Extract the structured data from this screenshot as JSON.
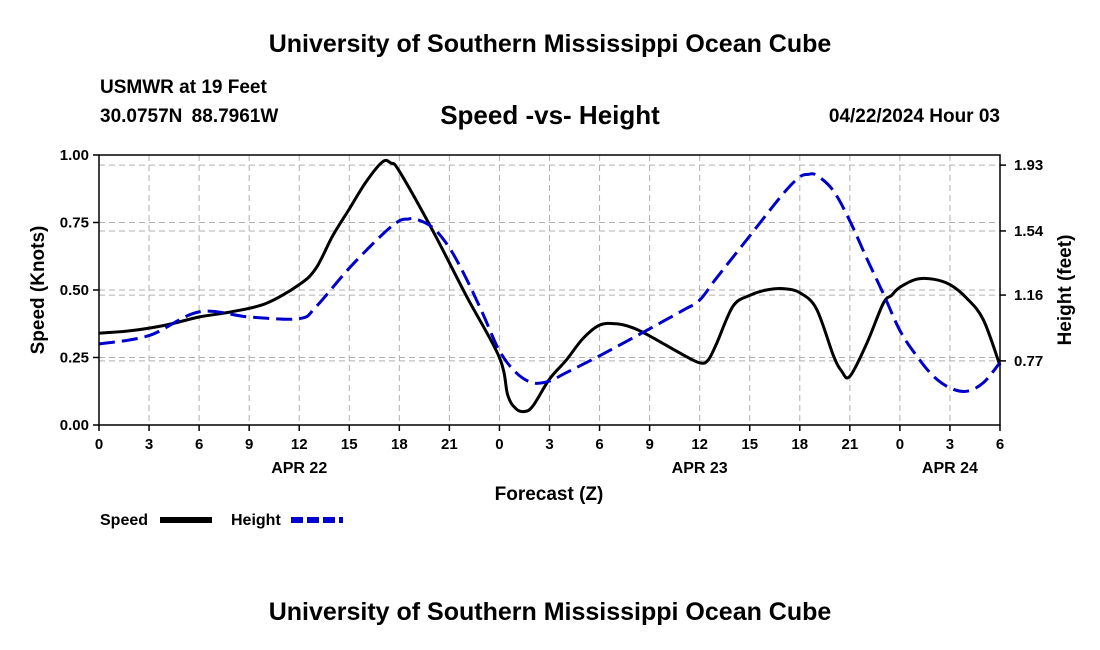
{
  "header": {
    "top_title": "University of Southern Mississippi Ocean Cube",
    "station": "USMWR at 19 Feet",
    "coordinates": "30.0757N  88.7961W",
    "datetime": "04/22/2024 Hour 03"
  },
  "footer": {
    "bottom_title": "University of Southern Mississippi Ocean Cube"
  },
  "chart_data": {
    "type": "line",
    "title": "Speed -vs- Height",
    "xlabel": "Forecast (Z)",
    "ylabel_left": "Speed (Knots)",
    "ylabel_right": "Height (feet)",
    "x_range_hours": [
      0,
      54
    ],
    "x_tick_hours": [
      0,
      3,
      6,
      9,
      12,
      15,
      18,
      21,
      24,
      27,
      30,
      33,
      36,
      39,
      42,
      45,
      48,
      51,
      54
    ],
    "x_tick_labels": [
      "0",
      "3",
      "6",
      "9",
      "12",
      "15",
      "18",
      "21",
      "0",
      "3",
      "6",
      "9",
      "12",
      "15",
      "18",
      "21",
      "0",
      "3",
      "6"
    ],
    "date_labels": [
      {
        "hour": 12,
        "label": "APR 22"
      },
      {
        "hour": 36,
        "label": "APR 23"
      },
      {
        "hour": 51,
        "label": "APR 24"
      }
    ],
    "ylim_left": [
      0,
      1
    ],
    "y_ticks_left": [
      0,
      0.25,
      0.5,
      0.75,
      1.0
    ],
    "y_tick_labels_left": [
      "0.00",
      "0.25",
      "0.50",
      "0.75",
      "1.00"
    ],
    "ylim_right": [
      0.39,
      1.99
    ],
    "y_ticks_right": [
      0.77,
      1.16,
      1.54,
      1.93
    ],
    "y_tick_labels_right": [
      "0.77",
      "1.16",
      "1.54",
      "1.93"
    ],
    "grid": true,
    "legend_position": "bottom-left",
    "series": [
      {
        "name": "Speed",
        "axis": "left",
        "color": "#000000",
        "dash": "solid",
        "x": [
          0,
          2,
          4,
          6,
          8,
          10,
          12,
          13,
          14,
          15,
          16,
          17,
          17.5,
          18,
          20,
          22,
          24,
          24.5,
          25,
          25.5,
          26,
          27,
          28,
          29,
          30,
          31,
          32,
          33,
          35,
          36,
          36.5,
          37,
          38,
          39,
          40,
          41,
          42,
          43,
          44,
          44.5,
          45,
          46,
          47,
          47.5,
          48,
          49,
          50,
          51,
          52,
          53,
          54
        ],
        "values": [
          0.34,
          0.35,
          0.37,
          0.4,
          0.42,
          0.45,
          0.52,
          0.58,
          0.7,
          0.8,
          0.9,
          0.975,
          0.97,
          0.94,
          0.72,
          0.48,
          0.25,
          0.11,
          0.06,
          0.05,
          0.07,
          0.17,
          0.24,
          0.32,
          0.37,
          0.375,
          0.36,
          0.33,
          0.26,
          0.23,
          0.24,
          0.3,
          0.44,
          0.48,
          0.5,
          0.505,
          0.49,
          0.43,
          0.26,
          0.2,
          0.18,
          0.3,
          0.45,
          0.48,
          0.51,
          0.54,
          0.54,
          0.52,
          0.47,
          0.39,
          0.22
        ]
      },
      {
        "name": "Height",
        "axis": "right",
        "color": "#0000cc",
        "dash": "dashed",
        "x": [
          0,
          3,
          6,
          9,
          12,
          13,
          15,
          17,
          18,
          18.5,
          19,
          20,
          21,
          22,
          23,
          24,
          25,
          26,
          27,
          28,
          30,
          33,
          35,
          36,
          37,
          39,
          41,
          42,
          42.5,
          43,
          44,
          45,
          46,
          47,
          48,
          49,
          50,
          51,
          52,
          53,
          54
        ],
        "values": [
          0.87,
          0.92,
          1.06,
          1.03,
          1.02,
          1.09,
          1.32,
          1.52,
          1.6,
          1.61,
          1.61,
          1.56,
          1.44,
          1.26,
          1.05,
          0.83,
          0.7,
          0.64,
          0.65,
          0.7,
          0.8,
          0.96,
          1.07,
          1.13,
          1.26,
          1.51,
          1.76,
          1.86,
          1.875,
          1.87,
          1.78,
          1.6,
          1.38,
          1.17,
          0.95,
          0.8,
          0.68,
          0.61,
          0.59,
          0.64,
          0.76
        ]
      }
    ]
  }
}
